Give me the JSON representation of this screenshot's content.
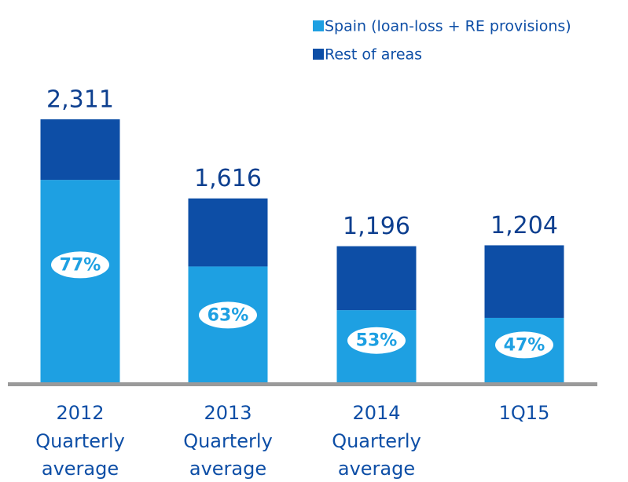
{
  "chart_data": {
    "type": "stacked-bar",
    "categories": [
      "2012\nQuarterly\naverage",
      "2013\nQuarterly\naverage",
      "2014\nQuarterly\naverage",
      "1Q15"
    ],
    "series": [
      {
        "name": "Spain (loan-loss + RE provisions)",
        "color": "#1ea0e2",
        "values": [
          1779,
          1018,
          634,
          566
        ]
      },
      {
        "name": "Rest of areas",
        "color": "#0d4ea6",
        "values": [
          532,
          598,
          562,
          638
        ]
      }
    ],
    "totals": [
      2311,
      1616,
      1196,
      1204
    ],
    "total_labels": [
      "2,311",
      "1,616",
      "1,196",
      "1,204"
    ],
    "share_labels": [
      "77%",
      "63%",
      "53%",
      "47%"
    ],
    "ylim": [
      0,
      2311
    ]
  }
}
